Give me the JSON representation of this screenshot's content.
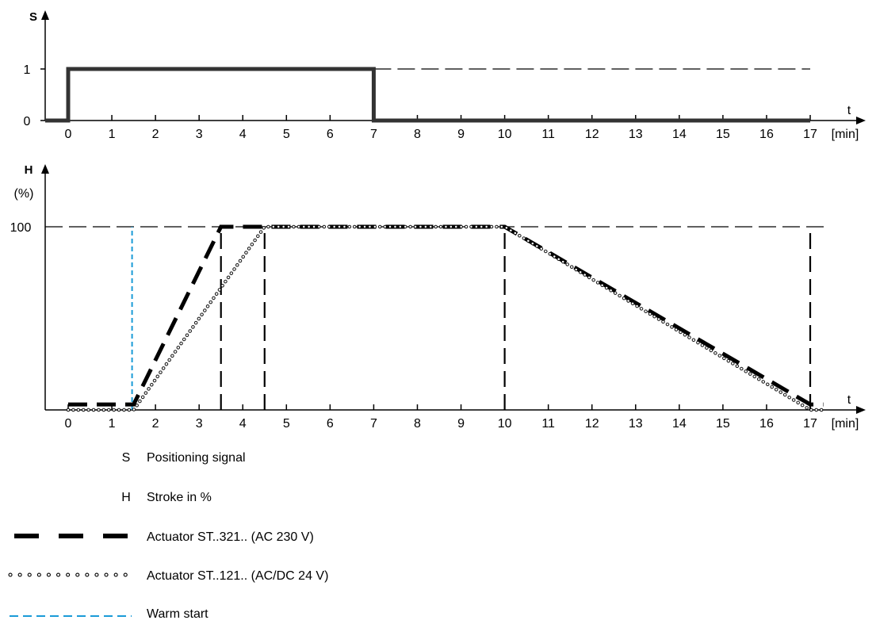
{
  "chart_data": [
    {
      "type": "line",
      "xlabel": "t",
      "xunit": "[min]",
      "ylabel": "S",
      "xlim": [
        0,
        17
      ],
      "ylim": [
        0,
        1
      ],
      "x_ticks": [
        "0",
        "1",
        "2",
        "3",
        "4",
        "5",
        "6",
        "7",
        "8",
        "9",
        "10",
        "11",
        "12",
        "13",
        "14",
        "15",
        "16",
        "17"
      ],
      "y_ticks": [
        "0",
        "1"
      ],
      "series": [
        {
          "name": "S",
          "style": "solid-thick",
          "color": "#333333",
          "points": [
            [
              -0.5,
              0
            ],
            [
              0,
              0
            ],
            [
              0,
              1
            ],
            [
              7,
              1
            ],
            [
              7,
              0
            ],
            [
              17,
              0
            ]
          ]
        }
      ],
      "reference_lines": [
        {
          "y": 1,
          "x_from": 7,
          "x_to": 17,
          "style": "dashed"
        }
      ]
    },
    {
      "type": "line",
      "xlabel": "t",
      "xunit": "[min]",
      "ylabel": "H",
      "ylabel2": "(%)",
      "xlim": [
        0,
        17
      ],
      "ylim": [
        0,
        100
      ],
      "x_ticks": [
        "0",
        "1",
        "2",
        "3",
        "4",
        "5",
        "6",
        "7",
        "8",
        "9",
        "10",
        "11",
        "12",
        "13",
        "14",
        "15",
        "16",
        "17"
      ],
      "y_ticks": [
        "100"
      ],
      "series": [
        {
          "name": "Actuator ST..321.. (AC 230 V)",
          "style": "dashed-thick",
          "color": "#000000",
          "points": [
            [
              0,
              3
            ],
            [
              1.5,
              3
            ],
            [
              3.5,
              100
            ],
            [
              10,
              100
            ],
            [
              17,
              3
            ],
            [
              17.3,
              3
            ]
          ]
        },
        {
          "name": "Actuator ST..121.. (AC/DC 24 V)",
          "style": "dotted-circles",
          "color": "#000000",
          "points": [
            [
              0,
              0
            ],
            [
              1.5,
              0
            ],
            [
              4.5,
              100
            ],
            [
              10,
              100
            ],
            [
              17,
              0
            ],
            [
              17.3,
              0
            ]
          ]
        }
      ],
      "reference_lines": [
        {
          "y": 100,
          "x_from": 0,
          "x_to": 17.4,
          "style": "dashed"
        },
        {
          "x": 1.5,
          "style": "blue-dashed",
          "color": "#1a9bd7"
        },
        {
          "x": 3.5,
          "style": "dashed"
        },
        {
          "x": 4.5,
          "style": "dashed"
        },
        {
          "x": 10,
          "style": "dashed"
        },
        {
          "x": 17,
          "style": "dashed"
        }
      ]
    }
  ],
  "legend": {
    "items": [
      {
        "symbol": "S",
        "label": "Positioning signal"
      },
      {
        "symbol": "H",
        "label": "Stroke in %"
      },
      {
        "symbol": "dashed-thick",
        "label": "Actuator ST..321.. (AC 230 V)"
      },
      {
        "symbol": "dotted-circles",
        "label": "Actuator ST..121.. (AC/DC 24 V)"
      },
      {
        "symbol": "blue-dashed",
        "label": "Warm start",
        "color": "#1a9bd7"
      }
    ]
  }
}
